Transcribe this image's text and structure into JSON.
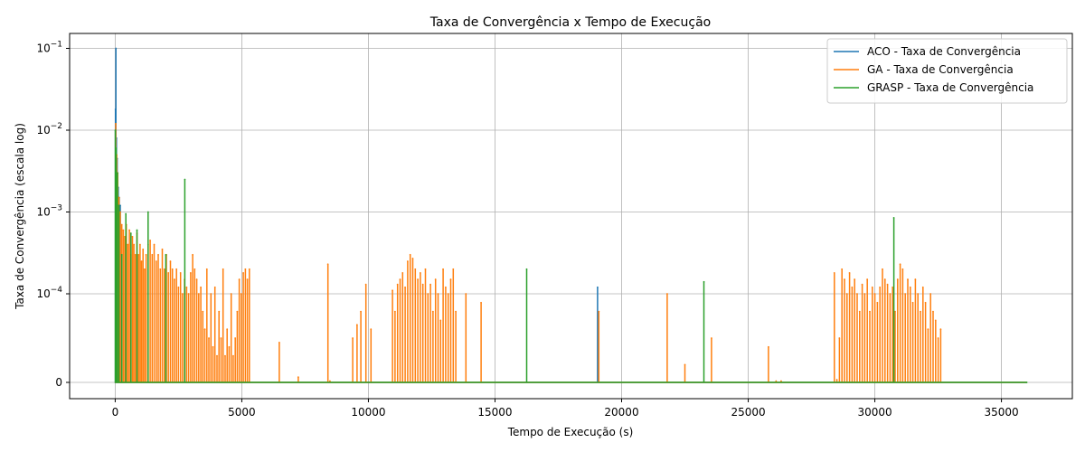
{
  "chart_data": {
    "type": "line",
    "title": "Taxa de Convergência x Tempo de Execução",
    "xlabel": "Tempo de Execução (s)",
    "ylabel": "Taxa de Convergência (escala log)",
    "xlim": [
      -1800,
      37800
    ],
    "x_ticks": [
      0,
      5000,
      10000,
      15000,
      20000,
      25000,
      30000,
      35000
    ],
    "x_tick_labels": [
      "0",
      "5000",
      "10000",
      "15000",
      "20000",
      "25000",
      "30000",
      "35000"
    ],
    "y_scale": "symlog",
    "y_ticks": [
      0,
      0.0001,
      0.001,
      0.01,
      0.1
    ],
    "y_tick_labels": [
      {
        "base": "0",
        "exp": ""
      },
      {
        "base": "10",
        "exp": "−4"
      },
      {
        "base": "10",
        "exp": "−3"
      },
      {
        "base": "10",
        "exp": "−2"
      },
      {
        "base": "10",
        "exp": "−1"
      }
    ],
    "grid": true,
    "legend_position": "top-right",
    "series": [
      {
        "name": "ACO - Taxa de Convergência",
        "color": "#1f77b4",
        "x": [
          10,
          30,
          50,
          80,
          120,
          160,
          200,
          19050
        ],
        "values": [
          0.018,
          0.1,
          0.008,
          0.0045,
          0.002,
          0.0015,
          0.0012,
          0.00012
        ]
      },
      {
        "name": "GA - Taxa de Convergência",
        "color": "#ff7f0e",
        "x": [
          20,
          60,
          100,
          150,
          200,
          260,
          320,
          380,
          440,
          500,
          560,
          620,
          680,
          740,
          800,
          860,
          920,
          980,
          1040,
          1100,
          1160,
          1220,
          1300,
          1380,
          1460,
          1540,
          1620,
          1700,
          1780,
          1860,
          1940,
          2020,
          2100,
          2180,
          2260,
          2340,
          2420,
          2500,
          2580,
          2660,
          2740,
          2820,
          2900,
          2980,
          3060,
          3140,
          3220,
          3300,
          3380,
          3460,
          3540,
          3620,
          3700,
          3780,
          3860,
          3940,
          4020,
          4100,
          4180,
          4260,
          4340,
          4420,
          4500,
          4580,
          4660,
          4740,
          4820,
          4900,
          4980,
          5060,
          5140,
          5220,
          5300,
          6480,
          7230,
          8400,
          8480,
          9380,
          9550,
          9700,
          9900,
          10100,
          10950,
          11050,
          11150,
          11250,
          11350,
          11450,
          11550,
          11650,
          11750,
          11850,
          11950,
          12050,
          12150,
          12250,
          12350,
          12450,
          12550,
          12650,
          12750,
          12850,
          12950,
          13050,
          13150,
          13250,
          13350,
          13450,
          13850,
          14450,
          19100,
          21800,
          22500,
          23550,
          25800,
          26100,
          26300,
          28400,
          28500,
          28600,
          28700,
          28800,
          28900,
          29000,
          29100,
          29200,
          29300,
          29400,
          29500,
          29600,
          29700,
          29800,
          29900,
          30000,
          30100,
          30200,
          30300,
          30400,
          30500,
          30600,
          30700,
          30800,
          30900,
          31000,
          31100,
          31200,
          31300,
          31400,
          31500,
          31600,
          31700,
          31800,
          31900,
          32000,
          32100,
          32200,
          32300,
          32400,
          32500,
          32600
        ],
        "values": [
          0.012,
          0.005,
          0.003,
          0.0015,
          0.001,
          0.0007,
          0.0006,
          0.0005,
          0.0007,
          0.0004,
          0.0006,
          0.0003,
          0.0005,
          0.0004,
          0.0003,
          0.00055,
          0.0003,
          0.0004,
          0.00025,
          0.00035,
          0.0002,
          0.0003,
          0.0004,
          0.00045,
          0.0003,
          0.0004,
          0.00025,
          0.0003,
          0.0002,
          0.00035,
          0.0002,
          0.0003,
          0.00018,
          0.00025,
          0.0002,
          0.00015,
          0.0002,
          0.00012,
          0.00018,
          0.0001,
          0.00015,
          0.00012,
          0.0001,
          0.00018,
          0.0003,
          0.0002,
          0.00015,
          0.0001,
          0.00012,
          8e-05,
          6e-05,
          0.0002,
          5e-05,
          0.0001,
          4e-05,
          0.00012,
          3e-05,
          8e-05,
          5e-05,
          0.0002,
          3e-05,
          6e-05,
          4e-05,
          0.0001,
          3e-05,
          5e-05,
          8e-05,
          0.00015,
          0.0001,
          0.00018,
          0.0002,
          0.00015,
          0.0002,
          4.5e-05,
          6e-06,
          0.00023,
          1.5e-06,
          5e-05,
          6.5e-05,
          8e-05,
          0.00013,
          6e-05,
          0.00011,
          8e-05,
          0.00013,
          0.00015,
          0.00018,
          0.00012,
          0.00025,
          0.0003,
          0.00027,
          0.0002,
          0.00015,
          0.00018,
          0.00013,
          0.0002,
          0.0001,
          0.00013,
          8e-05,
          0.00015,
          0.0001,
          7e-05,
          0.0002,
          0.00012,
          0.0001,
          0.00015,
          0.0002,
          8e-05,
          0.0001,
          9e-05,
          8e-05,
          0.0001,
          2e-05,
          5e-05,
          4e-05,
          1.5e-06,
          1.5e-06,
          0.00018,
          3e-06,
          5e-05,
          0.0002,
          0.00015,
          0.0001,
          0.00018,
          0.00012,
          0.00015,
          0.0001,
          8e-05,
          0.00013,
          0.0001,
          0.00015,
          8e-05,
          0.00012,
          0.0001,
          9e-05,
          0.00012,
          0.0002,
          0.00015,
          0.00013,
          0.0001,
          0.00012,
          8e-05,
          0.00015,
          0.00023,
          0.0002,
          0.0001,
          0.00015,
          0.00012,
          9e-05,
          0.00015,
          0.0001,
          8e-05,
          0.00012,
          9e-05,
          6e-05,
          0.0001,
          8e-05,
          7e-05,
          5e-05,
          6e-05
        ]
      },
      {
        "name": "GRASP - Taxa de Convergência",
        "color": "#2ca02c",
        "x": [
          5,
          40,
          90,
          150,
          260,
          420,
          620,
          860,
          1300,
          2000,
          2750,
          16250,
          23250,
          30750,
          36000
        ],
        "values": [
          0.01,
          0.006,
          0.003,
          0.0012,
          0.0003,
          0.00095,
          0.00055,
          0.0006,
          0.001,
          0.0003,
          0.0025,
          0.0002,
          0.00014,
          0.00085,
          0
        ]
      }
    ]
  }
}
